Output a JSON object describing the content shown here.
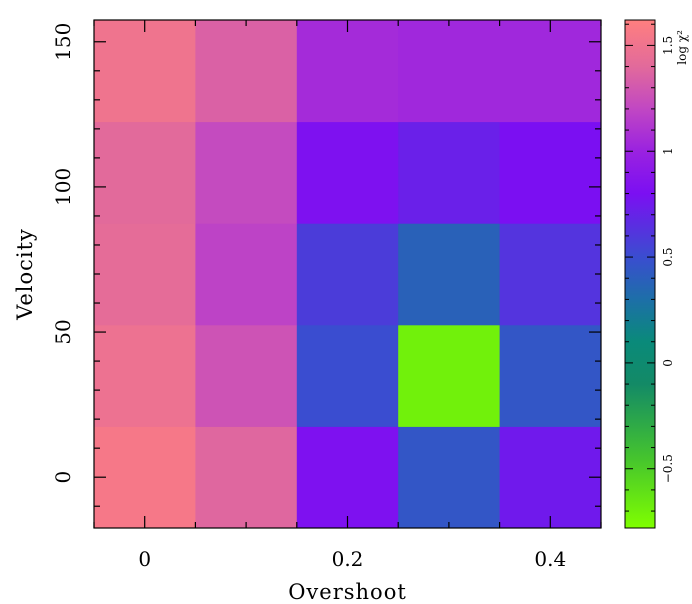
{
  "chart_data": {
    "type": "heatmap",
    "xlabel": "Overshoot",
    "ylabel": "Velocity",
    "x": [
      0,
      0.1,
      0.2,
      0.3,
      0.4
    ],
    "y": [
      0,
      35,
      70,
      105,
      140
    ],
    "xlim": [
      -0.05,
      0.45
    ],
    "ylim": [
      -17.5,
      157.5
    ],
    "xticks": [
      0,
      0.2,
      0.4
    ],
    "xtick_labels": [
      "0",
      "0.2",
      "0.4"
    ],
    "yticks": [
      0,
      50,
      100,
      150
    ],
    "ytick_labels": [
      "0",
      "50",
      "100",
      "150"
    ],
    "values": [
      [
        1.55,
        1.38,
        0.82,
        0.45,
        0.75
      ],
      [
        1.48,
        1.27,
        0.5,
        -0.7,
        0.45
      ],
      [
        1.42,
        1.18,
        0.58,
        0.38,
        0.62
      ],
      [
        1.4,
        1.22,
        0.82,
        0.72,
        0.8
      ],
      [
        1.5,
        1.35,
        1.05,
        1.03,
        1.03
      ]
    ],
    "colorbar": {
      "label": "log χ²",
      "range": [
        -0.78,
        1.62
      ],
      "ticks": [
        -0.5,
        0,
        0.5,
        1,
        1.5
      ],
      "tick_labels": [
        "−0.5",
        "0",
        "0.5",
        "1",
        "1.5"
      ],
      "colors": [
        {
          "v": -0.78,
          "c": "#7fff00"
        },
        {
          "v": -0.45,
          "c": "#45c42e"
        },
        {
          "v": -0.1,
          "c": "#138a66"
        },
        {
          "v": 0.1,
          "c": "#0a8a7a"
        },
        {
          "v": 0.3,
          "c": "#1d6fa8"
        },
        {
          "v": 0.5,
          "c": "#3a4dd0"
        },
        {
          "v": 0.8,
          "c": "#7b0ff2"
        },
        {
          "v": 1.0,
          "c": "#9a22e0"
        },
        {
          "v": 1.2,
          "c": "#c147c3"
        },
        {
          "v": 1.4,
          "c": "#e26a9b"
        },
        {
          "v": 1.62,
          "c": "#ff7f7f"
        }
      ]
    }
  }
}
